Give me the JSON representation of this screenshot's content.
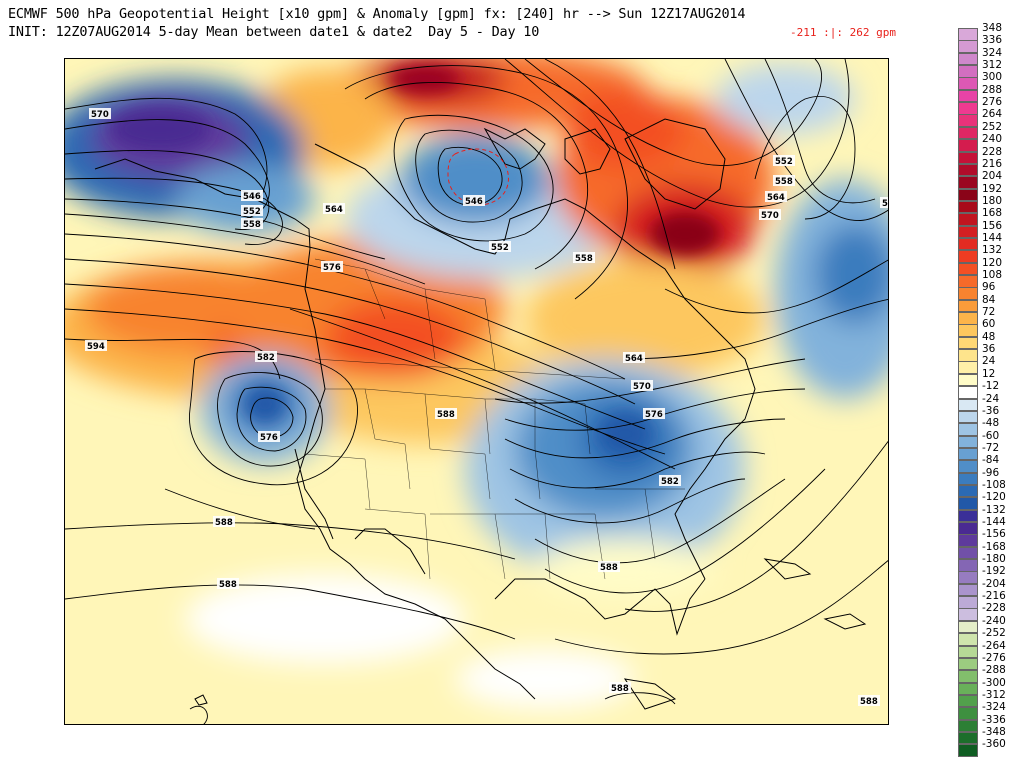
{
  "header": {
    "title_line1": "ECMWF 500 hPa Geopotential Height [x10 gpm] & Anomaly [gpm] fx: [240] hr --> Sun 12Z17AUG2014",
    "title_line2": "INIT: 12Z07AUG2014 5-day Mean between date1 & date2  Day 5 - Day 10",
    "anomaly_range": "-211 :|: 262 gpm"
  },
  "contour_labels": [
    {
      "id": "570-alaska",
      "text": "570"
    },
    {
      "id": "546-alaska",
      "text": "546"
    },
    {
      "id": "552-alaska",
      "text": "552"
    },
    {
      "id": "558-alaska",
      "text": "558"
    },
    {
      "id": "564-bc",
      "text": "564"
    },
    {
      "id": "576-bc",
      "text": "576"
    },
    {
      "id": "594-pacific",
      "text": "594"
    },
    {
      "id": "582-pacific",
      "text": "582"
    },
    {
      "id": "576-pacific",
      "text": "576"
    },
    {
      "id": "588-pacific",
      "text": "588"
    },
    {
      "id": "588-south-pacific",
      "text": "588"
    },
    {
      "id": "546-hudson",
      "text": "546"
    },
    {
      "id": "552-hudson",
      "text": "552"
    },
    {
      "id": "558-quebec",
      "text": "558"
    },
    {
      "id": "564-ontario",
      "text": "564"
    },
    {
      "id": "570-ontario",
      "text": "570"
    },
    {
      "id": "576-east",
      "text": "576"
    },
    {
      "id": "582-east",
      "text": "582"
    },
    {
      "id": "588-central",
      "text": "588"
    },
    {
      "id": "588-gulf",
      "text": "588"
    },
    {
      "id": "588-caribbean",
      "text": "588"
    },
    {
      "id": "588-east-atlantic",
      "text": "588"
    },
    {
      "id": "552-atlantic",
      "text": "552"
    },
    {
      "id": "558-atlantic",
      "text": "558"
    },
    {
      "id": "564-atlantic",
      "text": "564"
    },
    {
      "id": "570-atlantic",
      "text": "570"
    },
    {
      "id": "5-edge",
      "text": "5"
    }
  ],
  "legend": {
    "entries": [
      {
        "label": "348",
        "color": "#d9a8d9"
      },
      {
        "label": "336",
        "color": "#d49ad3"
      },
      {
        "label": "324",
        "color": "#cf88cb"
      },
      {
        "label": "312",
        "color": "#d26fc0"
      },
      {
        "label": "300",
        "color": "#dd58b4"
      },
      {
        "label": "288",
        "color": "#e743a6"
      },
      {
        "label": "276",
        "color": "#ee3a90"
      },
      {
        "label": "264",
        "color": "#e8327a"
      },
      {
        "label": "252",
        "color": "#df2764"
      },
      {
        "label": "240",
        "color": "#d41c4e"
      },
      {
        "label": "228",
        "color": "#c51238"
      },
      {
        "label": "216",
        "color": "#b00c2a"
      },
      {
        "label": "204",
        "color": "#9a0620"
      },
      {
        "label": "192",
        "color": "#8a0418"
      },
      {
        "label": "180",
        "color": "#a80a1a"
      },
      {
        "label": "168",
        "color": "#c01520"
      },
      {
        "label": "156",
        "color": "#d41f22"
      },
      {
        "label": "144",
        "color": "#e32b22"
      },
      {
        "label": "132",
        "color": "#ee3c22"
      },
      {
        "label": "120",
        "color": "#f35024"
      },
      {
        "label": "108",
        "color": "#f66a2a"
      },
      {
        "label": "96",
        "color": "#f8832f"
      },
      {
        "label": "84",
        "color": "#fa9c3a"
      },
      {
        "label": "72",
        "color": "#fcb44a"
      },
      {
        "label": "60",
        "color": "#fdc75e"
      },
      {
        "label": "48",
        "color": "#fed775"
      },
      {
        "label": "36",
        "color": "#fee48c"
      },
      {
        "label": "24",
        "color": "#fff0a8"
      },
      {
        "label": "12",
        "color": "#fffcc8"
      },
      {
        "label": "-12",
        "color": "#ffffff"
      },
      {
        "label": "-24",
        "color": "#d9e8f3"
      },
      {
        "label": "-36",
        "color": "#bcd6ec"
      },
      {
        "label": "-48",
        "color": "#9ec4e4"
      },
      {
        "label": "-60",
        "color": "#82b2db"
      },
      {
        "label": "-72",
        "color": "#68a0d2"
      },
      {
        "label": "-84",
        "color": "#508ec8"
      },
      {
        "label": "-96",
        "color": "#3b7cbe"
      },
      {
        "label": "-108",
        "color": "#2b6ab4"
      },
      {
        "label": "-120",
        "color": "#2158a8"
      },
      {
        "label": "-132",
        "color": "#3a2f98"
      },
      {
        "label": "-144",
        "color": "#4a2a92"
      },
      {
        "label": "-156",
        "color": "#5e3a9c"
      },
      {
        "label": "-168",
        "color": "#7150a8"
      },
      {
        "label": "-180",
        "color": "#8466b4"
      },
      {
        "label": "-192",
        "color": "#977cc0"
      },
      {
        "label": "-204",
        "color": "#aa94cc"
      },
      {
        "label": "-216",
        "color": "#bcaad6"
      },
      {
        "label": "-228",
        "color": "#ccbedf"
      },
      {
        "label": "-240",
        "color": "#e4eec8"
      },
      {
        "label": "-252",
        "color": "#cfe5ad"
      },
      {
        "label": "-264",
        "color": "#b6d996"
      },
      {
        "label": "-276",
        "color": "#9ccc80"
      },
      {
        "label": "-288",
        "color": "#82be6c"
      },
      {
        "label": "-300",
        "color": "#69b05a"
      },
      {
        "label": "-312",
        "color": "#52a04c"
      },
      {
        "label": "-324",
        "color": "#3e9040"
      },
      {
        "label": "-336",
        "color": "#2c7f35"
      },
      {
        "label": "-348",
        "color": "#1c6e2b"
      },
      {
        "label": "-360",
        "color": "#0f5d22"
      }
    ]
  }
}
